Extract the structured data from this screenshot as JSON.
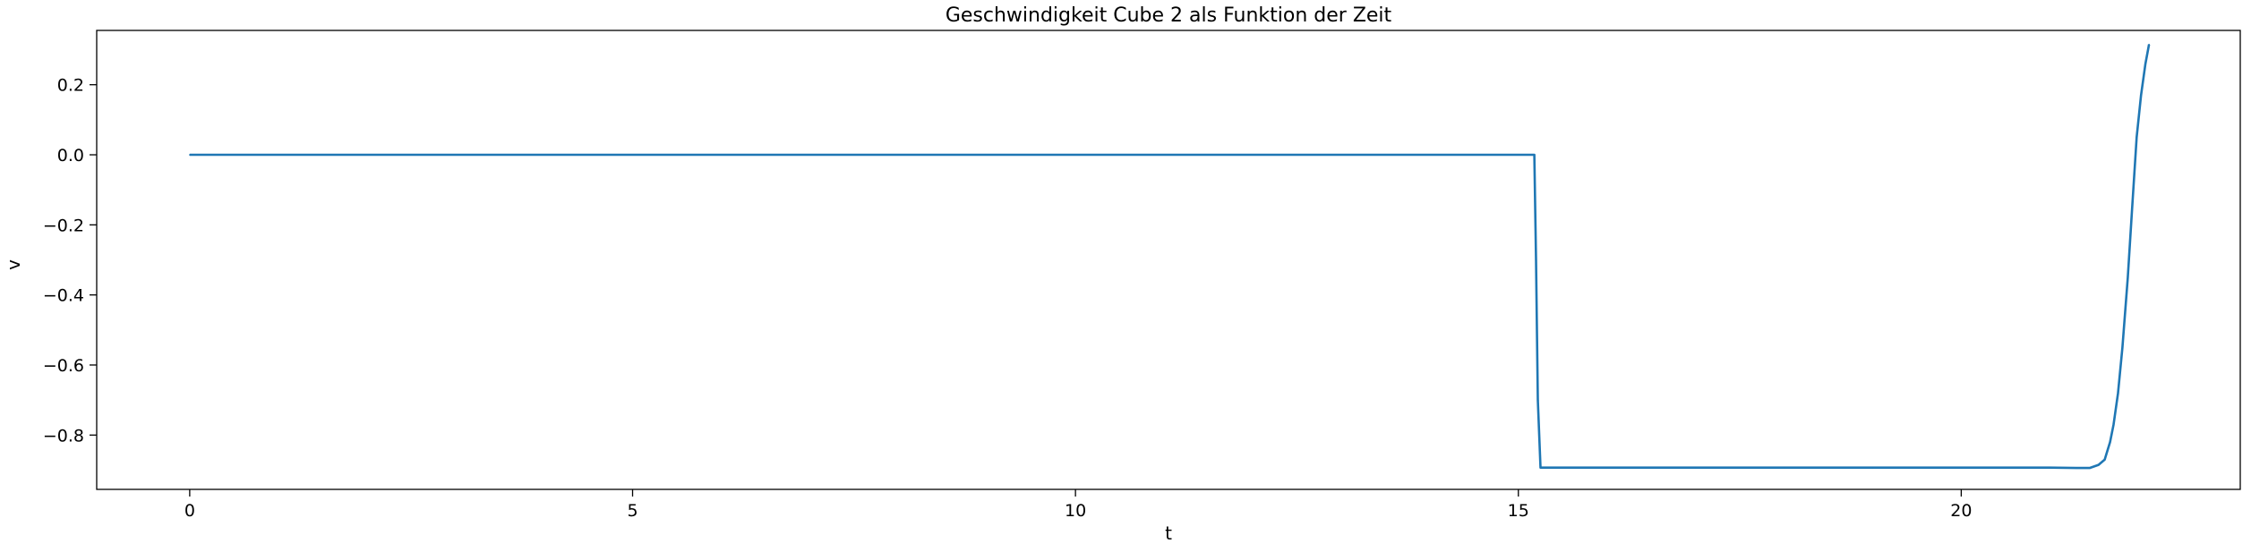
{
  "chart_data": {
    "type": "line",
    "title": "Geschwindigkeit Cube 2 als Funktion der Zeit",
    "xlabel": "t",
    "ylabel": "v",
    "xlim": [
      -1.05,
      23.15
    ],
    "ylim": [
      -0.955,
      0.355
    ],
    "xticks": [
      0,
      5,
      10,
      15,
      20
    ],
    "xtick_labels": [
      "0",
      "5",
      "10",
      "15",
      "20"
    ],
    "yticks": [
      0.2,
      0.0,
      -0.2,
      -0.4,
      -0.6,
      -0.8
    ],
    "ytick_labels": [
      "0.2",
      "0.0",
      "−0.2",
      "−0.4",
      "−0.6",
      "−0.8"
    ],
    "grid": false,
    "series": [
      {
        "color": "#1f77b4",
        "x": [
          0,
          15.18,
          15.2,
          15.22,
          15.25,
          15.3,
          16.0,
          17.0,
          18.0,
          19.0,
          20.0,
          21.0,
          21.3,
          21.45,
          21.55,
          21.62,
          21.68,
          21.72,
          21.77,
          21.82,
          21.88,
          21.93,
          21.98,
          22.03,
          22.08,
          22.12
        ],
        "y": [
          0.0,
          0.0,
          -0.3,
          -0.7,
          -0.893,
          -0.893,
          -0.893,
          -0.893,
          -0.893,
          -0.893,
          -0.893,
          -0.893,
          -0.894,
          -0.894,
          -0.885,
          -0.87,
          -0.82,
          -0.77,
          -0.68,
          -0.55,
          -0.35,
          -0.15,
          0.05,
          0.17,
          0.26,
          0.315
        ]
      }
    ]
  }
}
